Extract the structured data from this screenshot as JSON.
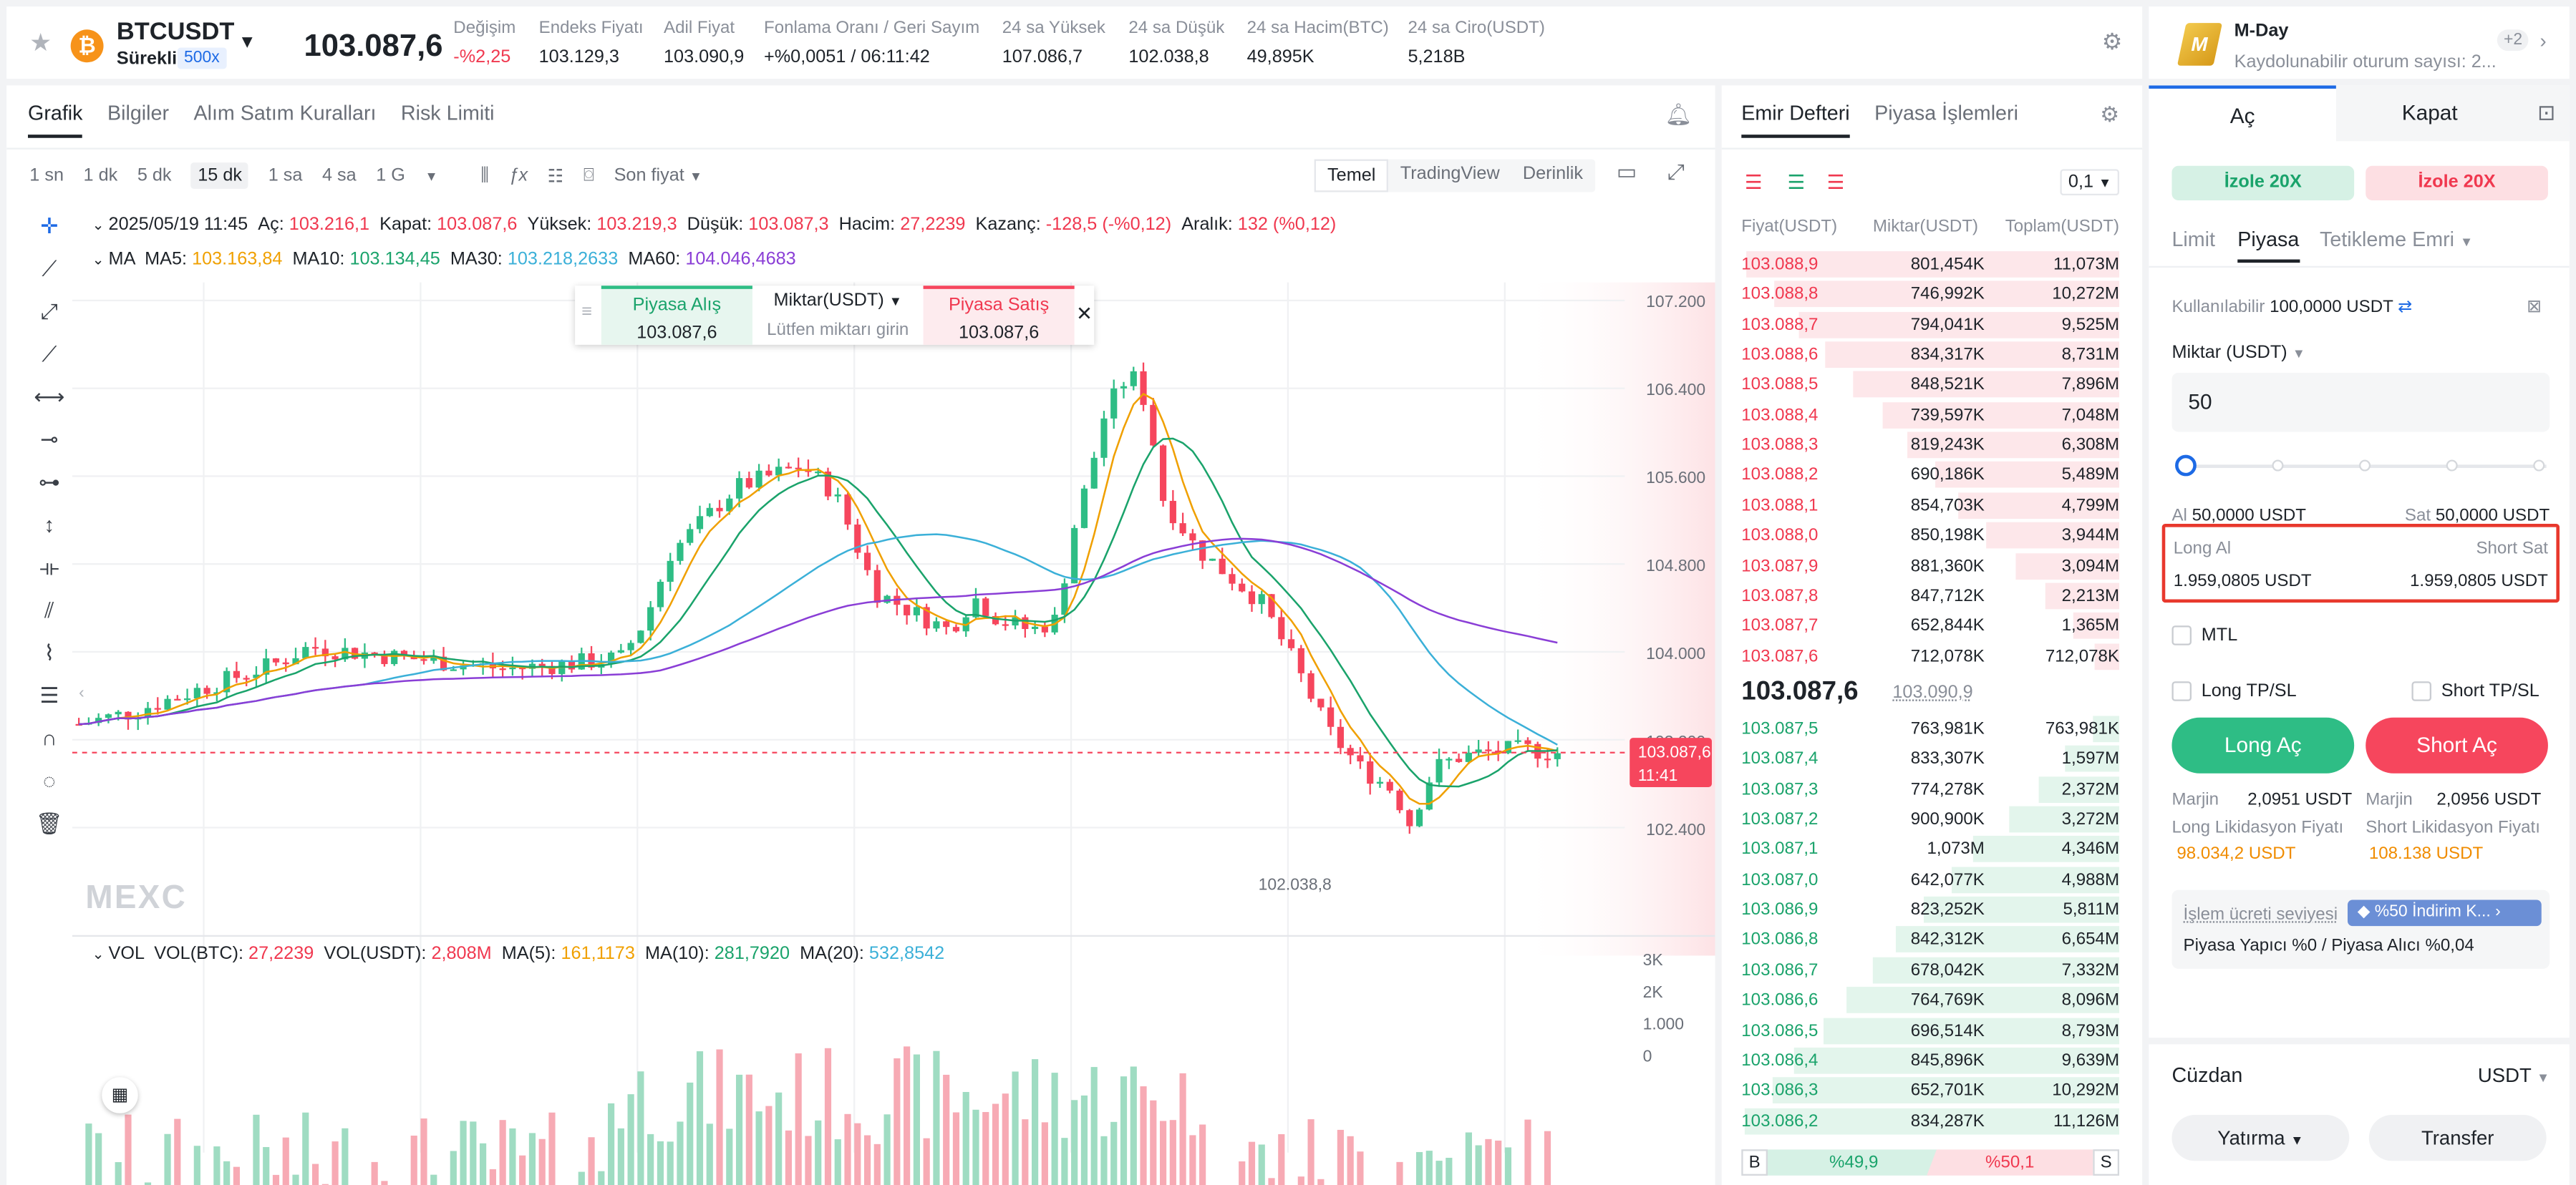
{
  "header": {
    "symbol": "BTCUSDT",
    "contract": "Sürekli",
    "leverage": "500x",
    "last_price": "103.087,6",
    "stats": [
      {
        "label": "Değişim",
        "value": "-%2,25",
        "color": "#f0384f"
      },
      {
        "label": "Endeks Fiyatı",
        "value": "103.129,3",
        "color": "#1e2329"
      },
      {
        "label": "Adil Fiyat",
        "value": "103.090,9",
        "color": "#1e2329"
      },
      {
        "label": "Fonlama Oranı / Geri Sayım",
        "value": "+%0,0051 / 06:11:42",
        "color": "#1e2329"
      },
      {
        "label": "24 sa Yüksek",
        "value": "107.086,7",
        "color": "#1e2329"
      },
      {
        "label": "24 sa Düşük",
        "value": "102.038,8",
        "color": "#1e2329"
      },
      {
        "label": "24 sa Hacim(BTC)",
        "value": "49,895K",
        "color": "#1e2329"
      },
      {
        "label": "24 sa Ciro(USDT)",
        "value": "5,218B",
        "color": "#1e2329"
      }
    ]
  },
  "chart_tabs": [
    "Grafik",
    "Bilgiler",
    "Alım Satım Kuralları",
    "Risk Limiti"
  ],
  "timeframes": [
    "1 sn",
    "1 dk",
    "5 dk",
    "15 dk",
    "1 sa",
    "4 sa",
    "1 G"
  ],
  "price_type": "Son fiyat",
  "view_modes": [
    "Temel",
    "TradingView",
    "Derinlik"
  ],
  "ohlc": {
    "date": "2025/05/19 11:45",
    "open_label": "Aç:",
    "open": "103.216,1",
    "close_label": "Kapat:",
    "close": "103.087,6",
    "high_label": "Yüksek:",
    "high": "103.219,3",
    "low_label": "Düşük:",
    "low": "103.087,3",
    "vol_label": "Hacim:",
    "vol": "27,2239",
    "pnl_label": "Kazanç:",
    "pnl": "-128,5 (-%0,12)",
    "range_label": "Aralık:",
    "range": "132 (%0,12)"
  },
  "ma": {
    "label": "MA",
    "ma5_label": "MA5:",
    "ma5": "103.163,84",
    "ma10_label": "MA10:",
    "ma10": "103.134,45",
    "ma30_label": "MA30:",
    "ma30": "103.218,2633",
    "ma60_label": "MA60:",
    "ma60": "104.046,4683"
  },
  "quick_order": {
    "buy_label": "Piyasa Alış",
    "buy_price": "103.087,6",
    "qty_label": "Miktar(USDT)",
    "qty_placeholder": "Lütfen miktarı girin",
    "sell_label": "Piyasa Satış",
    "sell_price": "103.087,6"
  },
  "price_axis": [
    "107.200",
    "106.400",
    "105.600",
    "104.800",
    "104.000",
    "103.200",
    "102.400"
  ],
  "current_price_tag": {
    "price": "103.087,6",
    "timer": "11:41"
  },
  "low_marker": "102.038,8",
  "watermark": "MEXC",
  "vol": {
    "label": "VOL",
    "btc_label": "VOL(BTC):",
    "btc": "27,2239",
    "usdt_label": "VOL(USDT):",
    "usdt": "2,808M",
    "ma5_label": "MA(5):",
    "ma5": "161,1173",
    "ma10_label": "MA(10):",
    "ma10": "281,7920",
    "ma20_label": "MA(20):",
    "ma20": "532,8542"
  },
  "vol_axis": [
    "3K",
    "2K",
    "1.000",
    "0"
  ],
  "book": {
    "tabs": [
      "Emir Defteri",
      "Piyasa İşlemleri"
    ],
    "precision": "0,1",
    "cols": [
      "Fiyat(USDT)",
      "Miktar(USDT)",
      "Toplam(USDT)"
    ],
    "asks": [
      [
        "103.088,9",
        "801,454K",
        "11,073M"
      ],
      [
        "103.088,8",
        "746,992K",
        "10,272M"
      ],
      [
        "103.088,7",
        "794,041K",
        "9,525M"
      ],
      [
        "103.088,6",
        "834,317K",
        "8,731M"
      ],
      [
        "103.088,5",
        "848,521K",
        "7,896M"
      ],
      [
        "103.088,4",
        "739,597K",
        "7,048M"
      ],
      [
        "103.088,3",
        "819,243K",
        "6,308M"
      ],
      [
        "103.088,2",
        "690,186K",
        "5,489M"
      ],
      [
        "103.088,1",
        "854,703K",
        "4,799M"
      ],
      [
        "103.088,0",
        "850,198K",
        "3,944M"
      ],
      [
        "103.087,9",
        "881,360K",
        "3,094M"
      ],
      [
        "103.087,8",
        "847,712K",
        "2,213M"
      ],
      [
        "103.087,7",
        "652,844K",
        "1,365M"
      ],
      [
        "103.087,6",
        "712,078K",
        "712,078K"
      ]
    ],
    "last": "103.087,6",
    "mark": "103.090,9",
    "bids": [
      [
        "103.087,5",
        "763,981K",
        "763,981K"
      ],
      [
        "103.087,4",
        "833,307K",
        "1,597M"
      ],
      [
        "103.087,3",
        "774,278K",
        "2,372M"
      ],
      [
        "103.087,2",
        "900,900K",
        "3,272M"
      ],
      [
        "103.087,1",
        "1,073M",
        "4,346M"
      ],
      [
        "103.087,0",
        "642,077K",
        "4,988M"
      ],
      [
        "103.086,9",
        "823,252K",
        "5,811M"
      ],
      [
        "103.086,8",
        "842,312K",
        "6,654M"
      ],
      [
        "103.086,7",
        "678,042K",
        "7,332M"
      ],
      [
        "103.086,6",
        "764,769K",
        "8,096M"
      ],
      [
        "103.086,5",
        "696,514K",
        "8,793M"
      ],
      [
        "103.086,4",
        "845,896K",
        "9,639M"
      ],
      [
        "103.086,3",
        "652,701K",
        "10,292M"
      ],
      [
        "103.086,2",
        "834,287K",
        "11,126M"
      ]
    ],
    "ratio": {
      "b": "B",
      "b_pct": "%49,9",
      "s_pct": "%50,1",
      "s": "S"
    }
  },
  "mday": {
    "title": "M-Day",
    "sub": "Kaydolunabilir oturum sayısı: 2...",
    "badge": "+2"
  },
  "trade": {
    "tabs": [
      "Aç",
      "Kapat"
    ],
    "margin_long": "İzole 20X",
    "margin_short": "İzole 20X",
    "types": [
      "Limit",
      "Piyasa",
      "Tetikleme Emri"
    ],
    "avail_label": "Kullanılabilir",
    "avail": "100,0000 USDT",
    "qty_label": "Miktar (USDT)",
    "qty": "50",
    "buy_label": "Al",
    "buy": "50,0000 USDT",
    "sell_label": "Sat",
    "sell": "50,0000 USDT",
    "long_label": "Long Al",
    "long_val": "1.959,0805 USDT",
    "short_label": "Short Sat",
    "short_val": "1.959,0805 USDT",
    "mtl": "MTL",
    "long_tpsl": "Long TP/SL",
    "short_tpsl": "Short TP/SL",
    "long_btn": "Long Aç",
    "short_btn": "Short Aç",
    "margin_label": "Marjin",
    "margin_long_val": "2,0951 USDT",
    "margin_short_val": "2,0956 USDT",
    "liq_long_label": "Long Likidasyon Fiyatı",
    "liq_long": "98.034,2 USDT",
    "liq_short_label": "Short Likidasyon Fiyatı",
    "liq_short": "108.138 USDT",
    "fee_label": "İşlem ücreti seviyesi",
    "fee_badge": "%50 İndirim K...",
    "fee_text": "Piyasa Yapıcı %0 / Piyasa Alıcı %0,04"
  },
  "wallet": {
    "title": "Cüzdan",
    "currency": "USDT",
    "deposit": "Yatırma",
    "transfer": "Transfer"
  },
  "colors": {
    "up": "#2ebd85",
    "down": "#f6465d",
    "accent": "#1d6ae5"
  }
}
